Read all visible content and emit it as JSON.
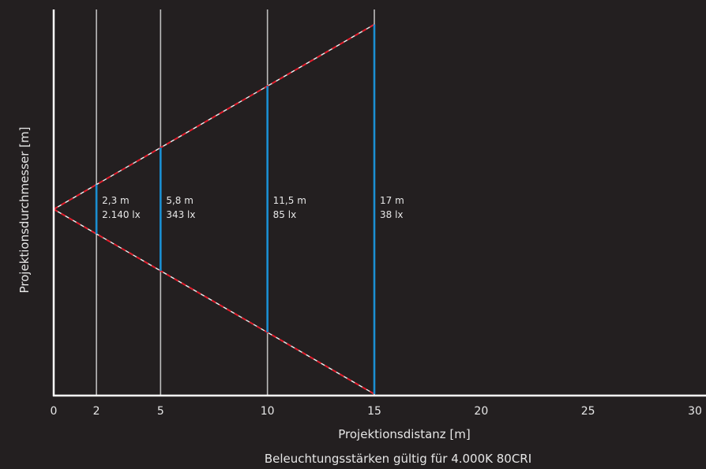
{
  "chart_data": {
    "type": "line",
    "xlabel": "Projektionsdistanz [m]",
    "ylabel": "Projektionsdurchmesser [m]",
    "note": "Beleuchtungsstärken gültig für 4.000K 80CRI",
    "x_ticks": [
      0,
      2,
      5,
      10,
      15,
      20,
      25,
      30
    ],
    "xlim": [
      0,
      30
    ],
    "ylim": [
      -8.5,
      8.5
    ],
    "grid": {
      "verticals_at": [
        2,
        5,
        10,
        15
      ]
    },
    "beam": {
      "origin": [
        0,
        0
      ],
      "edges": [
        {
          "x": [
            0,
            15
          ],
          "y": [
            0,
            8.5
          ]
        },
        {
          "x": [
            0,
            15
          ],
          "y": [
            0,
            -8.5
          ]
        }
      ]
    },
    "measurements": [
      {
        "distance": 2,
        "diameter": 2.3,
        "diameter_label": "2,3 m",
        "lux_label": "2.140 lx"
      },
      {
        "distance": 5,
        "diameter": 5.8,
        "diameter_label": "5,8 m",
        "lux_label": "343 lx"
      },
      {
        "distance": 10,
        "diameter": 11.5,
        "diameter_label": "11,5 m",
        "lux_label": "85 lx"
      },
      {
        "distance": 15,
        "diameter": 17,
        "diameter_label": "17 m",
        "lux_label": "38 lx"
      }
    ],
    "colors": {
      "background": "#231f20",
      "axis": "#ffffff",
      "grid": "#bdbdbd",
      "beam_edge": "#e3202f",
      "diameter_bar": "#1b8fd2",
      "text": "#e6e6e6"
    }
  }
}
